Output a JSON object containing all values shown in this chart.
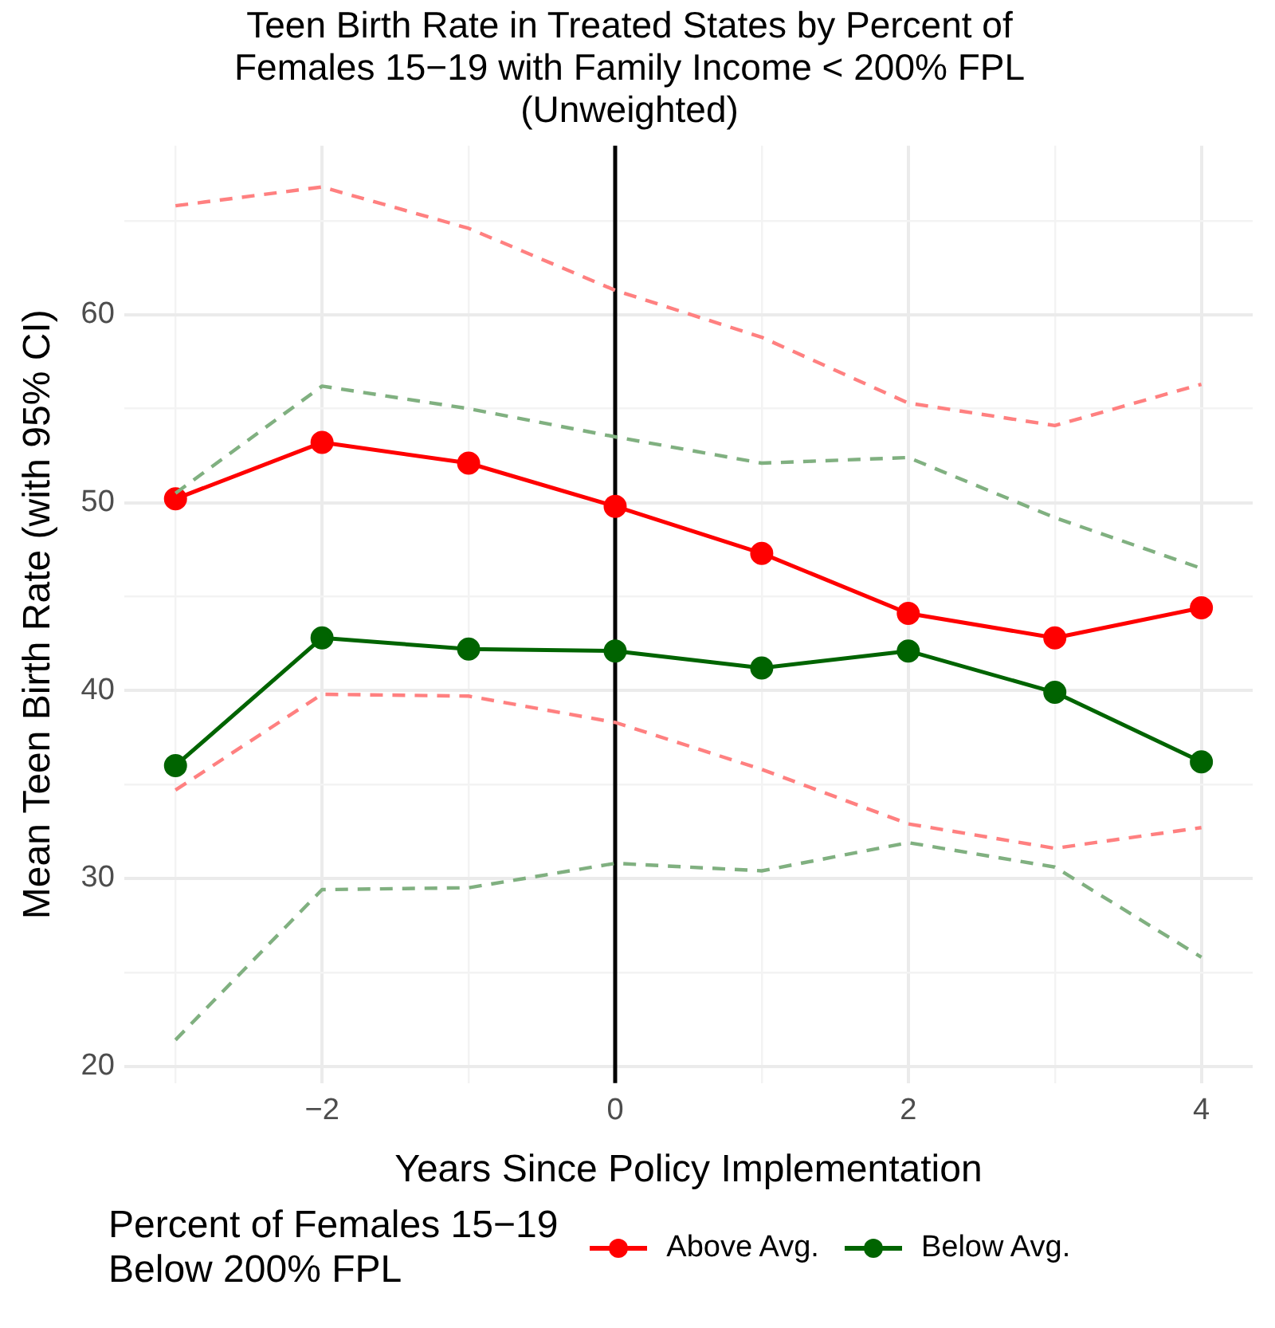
{
  "chart_data": {
    "type": "line",
    "title": "Teen Birth Rate in Treated States by Percent of\nFemales 15−19 with Family Income < 200% FPL\n(Unweighted)",
    "xlabel": "Years Since Policy Implementation",
    "ylabel": "Mean Teen Birth Rate (with 95% CI)",
    "legend_title": "Percent of Females 15−19\nBelow 200% FPL",
    "x": [
      -3,
      -2,
      -1,
      0,
      1,
      2,
      3,
      4
    ],
    "series": [
      {
        "name": "Above Avg.",
        "color": "#ff0000",
        "marker": "circle",
        "line_style": "solid",
        "values": [
          50.2,
          53.2,
          52.1,
          49.8,
          47.3,
          44.1,
          42.8,
          44.4
        ]
      },
      {
        "name": "Below Avg.",
        "color": "#006400",
        "marker": "circle",
        "line_style": "solid",
        "values": [
          36.0,
          42.8,
          42.2,
          42.1,
          41.2,
          42.1,
          39.9,
          36.2
        ]
      },
      {
        "color": "#ff8080",
        "marker": "none",
        "line_style": "dashed",
        "values": [
          65.8,
          66.8,
          64.6,
          61.3,
          58.8,
          55.3,
          54.1,
          56.3
        ]
      },
      {
        "color": "#ff8080",
        "marker": "none",
        "line_style": "dashed",
        "values": [
          34.7,
          39.8,
          39.7,
          38.3,
          35.8,
          32.9,
          31.6,
          32.7
        ]
      },
      {
        "color": "#80b080",
        "marker": "none",
        "line_style": "dashed",
        "values": [
          50.5,
          56.2,
          55.0,
          53.5,
          52.1,
          52.4,
          49.2,
          46.5
        ]
      },
      {
        "color": "#80b080",
        "marker": "none",
        "line_style": "dashed",
        "values": [
          21.4,
          29.4,
          29.5,
          30.8,
          30.4,
          31.9,
          30.6,
          25.8
        ]
      }
    ],
    "xlim": [
      -3.35,
      4.35
    ],
    "ylim": [
      19.1,
      69.0
    ],
    "xticks": [
      {
        "value": -3,
        "label": null
      },
      -2,
      {
        "value": -1,
        "label": null
      },
      0,
      {
        "value": 1,
        "label": null
      },
      2,
      {
        "value": 3,
        "label": null
      },
      4
    ],
    "yticks": [
      20,
      {
        "value": 25,
        "label": null
      },
      30,
      {
        "value": 35,
        "label": null
      },
      40,
      {
        "value": 45,
        "label": null
      },
      50,
      {
        "value": 55,
        "label": null
      },
      60,
      {
        "value": 65,
        "label": null
      }
    ],
    "ref_lines": [
      {
        "axis": "x",
        "value": 0,
        "color": "#000000",
        "line_style": "solid"
      }
    ],
    "grid": true,
    "legend": "bottom"
  }
}
